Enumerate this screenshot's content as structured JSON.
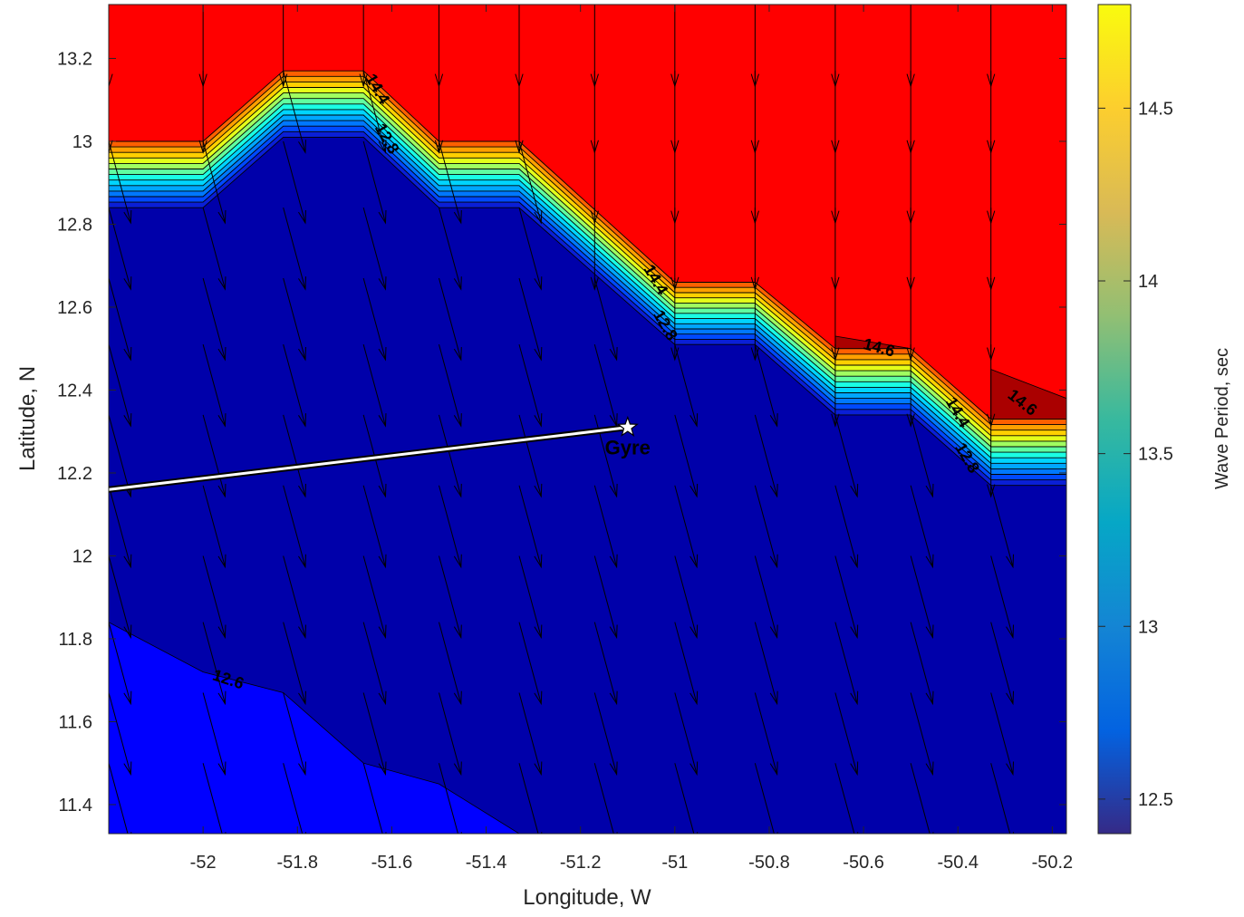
{
  "chart_data": {
    "type": "contour",
    "xlabel": "Longitude, W",
    "ylabel": "Latitude, N",
    "xlim": [
      -52.2,
      -50.17
    ],
    "ylim": [
      11.33,
      13.33
    ],
    "xticks": [
      -52,
      -51.8,
      -51.6,
      -51.4,
      -51.2,
      -51,
      -50.8,
      -50.6,
      -50.4,
      -50.2
    ],
    "yticks": [
      11.4,
      11.6,
      11.8,
      12,
      12.2,
      12.4,
      12.6,
      12.8,
      13,
      13.2
    ],
    "colorbar": {
      "label": "Wave Period, sec",
      "range": [
        12.4,
        14.8
      ],
      "ticks": [
        12.5,
        13,
        13.5,
        14,
        14.5
      ],
      "colormap": "parula"
    },
    "fill_colors": {
      "low_region": "#0000aa",
      "lower_left_region": "#0000ff",
      "high_region": "#ff0000",
      "peak_region": "#aa0000"
    },
    "contour_levels": [
      12.6,
      12.8,
      13.0,
      13.2,
      13.4,
      13.6,
      13.8,
      14.0,
      14.2,
      14.4,
      14.6
    ],
    "transition_lower_boundary": [
      [
        -52.2,
        12.84
      ],
      [
        -52.0,
        12.84
      ],
      [
        -51.83,
        13.01
      ],
      [
        -51.66,
        13.01
      ],
      [
        -51.5,
        12.84
      ],
      [
        -51.33,
        12.84
      ],
      [
        -51.0,
        12.51
      ],
      [
        -50.83,
        12.51
      ],
      [
        -50.66,
        12.34
      ],
      [
        -50.5,
        12.34
      ],
      [
        -50.33,
        12.17
      ],
      [
        -50.17,
        12.17
      ]
    ],
    "transition_upper_boundary": [
      [
        -52.2,
        13.0
      ],
      [
        -52.0,
        13.0
      ],
      [
        -51.83,
        13.17
      ],
      [
        -51.66,
        13.17
      ],
      [
        -51.5,
        13.0
      ],
      [
        -51.33,
        13.0
      ],
      [
        -51.0,
        12.66
      ],
      [
        -50.83,
        12.66
      ],
      [
        -50.66,
        12.5
      ],
      [
        -50.5,
        12.5
      ],
      [
        -50.33,
        12.33
      ],
      [
        -50.17,
        12.33
      ]
    ],
    "lower_left_boundary": [
      [
        -52.2,
        11.84
      ],
      [
        -52.0,
        11.72
      ],
      [
        -51.83,
        11.67
      ],
      [
        -51.66,
        11.5
      ],
      [
        -51.5,
        11.45
      ],
      [
        -51.33,
        11.33
      ]
    ],
    "peak_regions": [
      [
        [
          -50.66,
          12.5
        ],
        [
          -50.5,
          12.5
        ],
        [
          -50.66,
          12.53
        ]
      ],
      [
        [
          -50.33,
          12.33
        ],
        [
          -50.17,
          12.33
        ],
        [
          -50.17,
          12.38
        ],
        [
          -50.33,
          12.45
        ]
      ]
    ],
    "contour_labels": [
      {
        "text": "14.6",
        "lon": -50.57,
        "lat": 12.49,
        "angle": 15
      },
      {
        "text": "14.6",
        "lon": -50.27,
        "lat": 12.36,
        "angle": 38
      },
      {
        "text": "12.6",
        "lon": -51.95,
        "lat": 11.69,
        "angle": 18
      },
      {
        "text": "14.4",
        "lon": -51.64,
        "lat": 13.12,
        "angle": 60
      },
      {
        "text": "12.8",
        "lon": -51.62,
        "lat": 13.0,
        "angle": 60
      },
      {
        "text": "14.4",
        "lon": -51.05,
        "lat": 12.66,
        "angle": 60
      },
      {
        "text": "12.8",
        "lon": -51.03,
        "lat": 12.55,
        "angle": 60
      },
      {
        "text": "14.4",
        "lon": -50.41,
        "lat": 12.34,
        "angle": 60
      },
      {
        "text": "12.8",
        "lon": -50.39,
        "lat": 12.23,
        "angle": 60
      }
    ],
    "track": {
      "from": [
        -52.2,
        12.16
      ],
      "to": [
        -51.1,
        12.31
      ]
    },
    "marker": {
      "label": "Gyre",
      "lon": -51.1,
      "lat": 12.31
    },
    "vector_field": {
      "lons": [
        -52.2,
        -52.0,
        -51.83,
        -51.66,
        -51.5,
        -51.33,
        -51.17,
        -51.0,
        -50.83,
        -50.66,
        -50.5,
        -50.33
      ],
      "lats": [
        13.33,
        13.17,
        13.0,
        12.84,
        12.67,
        12.51,
        12.34,
        12.17,
        12.0,
        11.84,
        11.67,
        11.5
      ],
      "north_direction_deg": 180,
      "south_direction_deg": 165
    }
  }
}
